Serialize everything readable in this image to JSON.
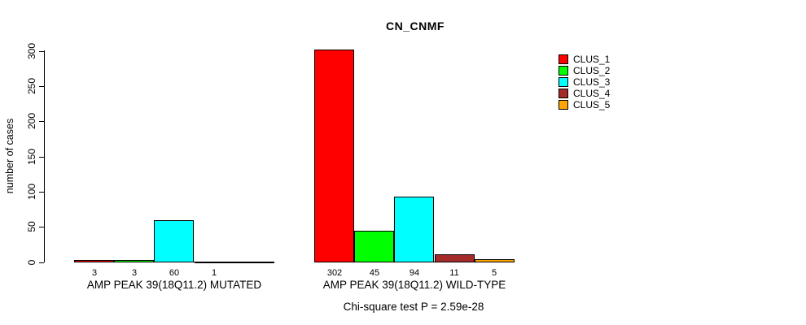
{
  "chart_data": {
    "type": "bar",
    "title": "CN_CNMF",
    "ylabel": "number of cases",
    "xlabel": "",
    "ylim": [
      0,
      300
    ],
    "y_ticks": [
      0,
      50,
      100,
      150,
      200,
      250,
      300
    ],
    "grid": false,
    "legend_position": "top-right",
    "categories": [
      "AMP PEAK 39(18Q11.2) MUTATED",
      "AMP PEAK 39(18Q11.2) WILD-TYPE"
    ],
    "series": [
      {
        "name": "CLUS_1",
        "color": "#FF0000",
        "values": [
          3,
          302
        ]
      },
      {
        "name": "CLUS_2",
        "color": "#00FF00",
        "values": [
          3,
          45
        ]
      },
      {
        "name": "CLUS_3",
        "color": "#00FFFF",
        "values": [
          60,
          94
        ]
      },
      {
        "name": "CLUS_4",
        "color": "#A52A2A",
        "values": [
          1,
          11
        ]
      },
      {
        "name": "CLUS_5",
        "color": "#FFA500",
        "values": [
          0,
          5
        ]
      }
    ],
    "bar_value_labels": [
      [
        "3",
        "3",
        "60",
        "1",
        ""
      ],
      [
        "302",
        "45",
        "94",
        "11",
        "5"
      ]
    ],
    "annotation": "Chi-square test P = 2.59e-28"
  }
}
